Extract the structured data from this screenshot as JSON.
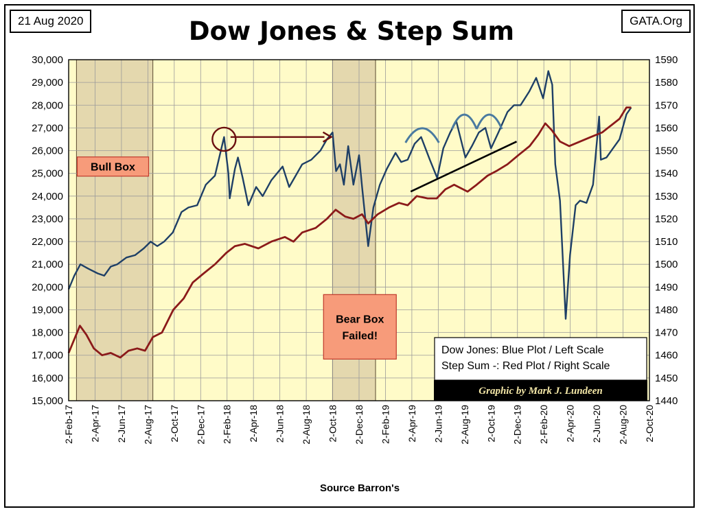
{
  "header": {
    "date": "21 Aug 2020",
    "site": "GATA.Org",
    "title": "Dow Jones & Step Sum"
  },
  "colors": {
    "plot_bg": "#fffbc8",
    "shade_box": "#e4d8ae",
    "dow_line": "#1e3f66",
    "step_line": "#8b1a1a",
    "callout_fill": "#f79b7a",
    "callout_border": "#c0392b",
    "arrow": "#6b0f0f",
    "trend_line": "#000000",
    "arc": "#4a7aa0",
    "credit_bg": "#000000"
  },
  "chart_data": {
    "type": "line",
    "title": "Dow Jones & Step Sum",
    "xlabel": "Source Barron's",
    "x_ticks": [
      "2-Feb-17",
      "2-Apr-17",
      "2-Jun-17",
      "2-Aug-17",
      "2-Oct-17",
      "2-Dec-17",
      "2-Feb-18",
      "2-Apr-18",
      "2-Jun-18",
      "2-Aug-18",
      "2-Oct-18",
      "2-Dec-18",
      "2-Feb-19",
      "2-Apr-19",
      "2-Jun-19",
      "2-Aug-19",
      "2-Oct-19",
      "2-Dec-19",
      "2-Feb-20",
      "2-Apr-20",
      "2-Jun-20",
      "2-Aug-20",
      "2-Oct-20"
    ],
    "xlim": [
      "2017-02-02",
      "2020-10-02"
    ],
    "y_left": {
      "ylim": [
        15000,
        30000
      ],
      "ticks": [
        "15,000",
        "16,000",
        "17,000",
        "18,000",
        "19,000",
        "20,000",
        "21,000",
        "22,000",
        "23,000",
        "24,000",
        "25,000",
        "26,000",
        "27,000",
        "28,000",
        "29,000",
        "30,000"
      ]
    },
    "y_right": {
      "ylim": [
        1440,
        1590
      ],
      "ticks": [
        "1440",
        "1450",
        "1460",
        "1470",
        "1480",
        "1490",
        "1500",
        "1510",
        "1520",
        "1530",
        "1540",
        "1550",
        "1560",
        "1570",
        "1580",
        "1590"
      ]
    },
    "grid": true,
    "legend": {
      "placement": "bottom-right",
      "entries": [
        "Dow Jones: Blue Plot / Left Scale",
        "Step Sum -: Red Plot / Right Scale"
      ]
    },
    "series": [
      {
        "name": "Dow Jones: Blue Plot / Left Scale",
        "axis": "left",
        "points": [
          [
            "2017-02-02",
            19900
          ],
          [
            "2017-02-15",
            20500
          ],
          [
            "2017-03-01",
            21000
          ],
          [
            "2017-03-20",
            20800
          ],
          [
            "2017-04-10",
            20600
          ],
          [
            "2017-04-25",
            20500
          ],
          [
            "2017-05-10",
            20900
          ],
          [
            "2017-05-25",
            21000
          ],
          [
            "2017-06-15",
            21300
          ],
          [
            "2017-07-05",
            21400
          ],
          [
            "2017-07-25",
            21700
          ],
          [
            "2017-08-10",
            22000
          ],
          [
            "2017-08-25",
            21800
          ],
          [
            "2017-09-10",
            22000
          ],
          [
            "2017-09-30",
            22400
          ],
          [
            "2017-10-20",
            23300
          ],
          [
            "2017-11-05",
            23500
          ],
          [
            "2017-11-25",
            23600
          ],
          [
            "2017-12-15",
            24500
          ],
          [
            "2018-01-05",
            24900
          ],
          [
            "2018-01-26",
            26600
          ],
          [
            "2018-02-05",
            25000
          ],
          [
            "2018-02-08",
            23900
          ],
          [
            "2018-02-20",
            25200
          ],
          [
            "2018-02-27",
            25700
          ],
          [
            "2018-03-10",
            24800
          ],
          [
            "2018-03-23",
            23600
          ],
          [
            "2018-04-10",
            24400
          ],
          [
            "2018-04-25",
            24000
          ],
          [
            "2018-05-15",
            24700
          ],
          [
            "2018-06-10",
            25300
          ],
          [
            "2018-06-25",
            24400
          ],
          [
            "2018-07-10",
            24900
          ],
          [
            "2018-07-25",
            25400
          ],
          [
            "2018-08-15",
            25600
          ],
          [
            "2018-09-05",
            26000
          ],
          [
            "2018-09-20",
            26500
          ],
          [
            "2018-10-03",
            26800
          ],
          [
            "2018-10-11",
            25100
          ],
          [
            "2018-10-20",
            25400
          ],
          [
            "2018-10-29",
            24500
          ],
          [
            "2018-11-08",
            26200
          ],
          [
            "2018-11-20",
            24500
          ],
          [
            "2018-12-03",
            25800
          ],
          [
            "2018-12-10",
            24400
          ],
          [
            "2018-12-24",
            21800
          ],
          [
            "2019-01-05",
            23500
          ],
          [
            "2019-01-20",
            24500
          ],
          [
            "2019-02-05",
            25200
          ],
          [
            "2019-02-25",
            25900
          ],
          [
            "2019-03-10",
            25500
          ],
          [
            "2019-03-25",
            25600
          ],
          [
            "2019-04-10",
            26300
          ],
          [
            "2019-04-25",
            26600
          ],
          [
            "2019-05-15",
            25600
          ],
          [
            "2019-06-01",
            24800
          ],
          [
            "2019-06-15",
            26100
          ],
          [
            "2019-07-01",
            26800
          ],
          [
            "2019-07-15",
            27300
          ],
          [
            "2019-08-05",
            25700
          ],
          [
            "2019-08-20",
            26200
          ],
          [
            "2019-09-05",
            26800
          ],
          [
            "2019-09-20",
            27000
          ],
          [
            "2019-10-03",
            26100
          ],
          [
            "2019-10-20",
            26800
          ],
          [
            "2019-11-10",
            27700
          ],
          [
            "2019-11-25",
            28000
          ],
          [
            "2019-12-10",
            28000
          ],
          [
            "2019-12-30",
            28600
          ],
          [
            "2020-01-15",
            29200
          ],
          [
            "2020-01-31",
            28300
          ],
          [
            "2020-02-12",
            29500
          ],
          [
            "2020-02-21",
            28900
          ],
          [
            "2020-02-28",
            25400
          ],
          [
            "2020-03-10",
            23800
          ],
          [
            "2020-03-23",
            18600
          ],
          [
            "2020-04-02",
            21400
          ],
          [
            "2020-04-15",
            23600
          ],
          [
            "2020-04-25",
            23800
          ],
          [
            "2020-05-10",
            23700
          ],
          [
            "2020-05-25",
            24500
          ],
          [
            "2020-06-08",
            27500
          ],
          [
            "2020-06-12",
            25600
          ],
          [
            "2020-06-25",
            25700
          ],
          [
            "2020-07-10",
            26100
          ],
          [
            "2020-07-25",
            26500
          ],
          [
            "2020-08-10",
            27600
          ],
          [
            "2020-08-21",
            27900
          ]
        ]
      },
      {
        "name": "Step Sum -: Red Plot / Right Scale",
        "axis": "right",
        "points": [
          [
            "2017-02-02",
            1461
          ],
          [
            "2017-02-15",
            1467
          ],
          [
            "2017-02-28",
            1473
          ],
          [
            "2017-03-15",
            1469
          ],
          [
            "2017-04-01",
            1463
          ],
          [
            "2017-04-20",
            1460
          ],
          [
            "2017-05-10",
            1461
          ],
          [
            "2017-06-01",
            1459
          ],
          [
            "2017-06-20",
            1462
          ],
          [
            "2017-07-10",
            1463
          ],
          [
            "2017-07-28",
            1462
          ],
          [
            "2017-08-15",
            1468
          ],
          [
            "2017-09-05",
            1470
          ],
          [
            "2017-10-01",
            1480
          ],
          [
            "2017-10-25",
            1485
          ],
          [
            "2017-11-15",
            1492
          ],
          [
            "2017-12-10",
            1496
          ],
          [
            "2018-01-05",
            1500
          ],
          [
            "2018-01-31",
            1505
          ],
          [
            "2018-02-20",
            1508
          ],
          [
            "2018-03-15",
            1509
          ],
          [
            "2018-04-15",
            1507
          ],
          [
            "2018-05-15",
            1510
          ],
          [
            "2018-06-15",
            1512
          ],
          [
            "2018-07-05",
            1510
          ],
          [
            "2018-07-25",
            1514
          ],
          [
            "2018-08-25",
            1516
          ],
          [
            "2018-09-20",
            1520
          ],
          [
            "2018-10-10",
            1524
          ],
          [
            "2018-11-01",
            1521
          ],
          [
            "2018-11-20",
            1520
          ],
          [
            "2018-12-10",
            1522
          ],
          [
            "2018-12-24",
            1518
          ],
          [
            "2019-01-15",
            1522
          ],
          [
            "2019-02-10",
            1525
          ],
          [
            "2019-03-05",
            1527
          ],
          [
            "2019-03-25",
            1526
          ],
          [
            "2019-04-15",
            1530
          ],
          [
            "2019-05-10",
            1529
          ],
          [
            "2019-05-31",
            1529
          ],
          [
            "2019-06-20",
            1533
          ],
          [
            "2019-07-10",
            1535
          ],
          [
            "2019-08-10",
            1532
          ],
          [
            "2019-08-31",
            1535
          ],
          [
            "2019-09-25",
            1539
          ],
          [
            "2019-10-15",
            1541
          ],
          [
            "2019-11-10",
            1544
          ],
          [
            "2019-12-05",
            1548
          ],
          [
            "2019-12-31",
            1552
          ],
          [
            "2020-01-20",
            1557
          ],
          [
            "2020-02-05",
            1562
          ],
          [
            "2020-02-20",
            1559
          ],
          [
            "2020-03-10",
            1554
          ],
          [
            "2020-03-31",
            1552
          ],
          [
            "2020-04-25",
            1554
          ],
          [
            "2020-05-20",
            1556
          ],
          [
            "2020-06-15",
            1558
          ],
          [
            "2020-07-05",
            1561
          ],
          [
            "2020-07-25",
            1564
          ],
          [
            "2020-08-10",
            1569
          ],
          [
            "2020-08-21",
            1569
          ]
        ]
      }
    ],
    "shaded_regions": [
      {
        "from": "2017-02-20",
        "to": "2017-08-15"
      },
      {
        "from": "2018-10-03",
        "to": "2019-01-10"
      }
    ],
    "annotations": [
      {
        "type": "callout",
        "text": [
          "Bull Box"
        ],
        "x": "2017-05-15",
        "y": 25300
      },
      {
        "type": "callout",
        "text": [
          "Bear Box",
          "Failed!"
        ],
        "x": "2018-12-05",
        "y": 18250
      },
      {
        "type": "circle",
        "x": "2018-01-26",
        "y": 26500
      },
      {
        "type": "arrow",
        "from": [
          "2018-02-10",
          26600
        ],
        "to": [
          "2018-09-30",
          26600
        ]
      },
      {
        "type": "trendline",
        "from": [
          "2019-04-01",
          24200
        ],
        "to": [
          "2019-12-01",
          26400
        ]
      },
      {
        "type": "arc",
        "from": "2019-03-20",
        "to": "2019-06-05",
        "y": 26350
      },
      {
        "type": "arc",
        "from": "2019-07-05",
        "to": "2019-08-31",
        "y": 26950
      },
      {
        "type": "arc",
        "from": "2019-08-31",
        "to": "2019-10-28",
        "y": 26950
      }
    ],
    "credit": "Graphic by Mark J. Lundeen"
  }
}
